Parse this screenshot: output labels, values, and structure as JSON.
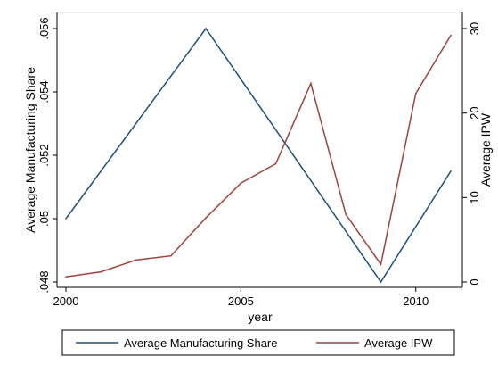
{
  "chart_data": {
    "type": "line",
    "title": "",
    "xlabel": "year",
    "ylabel_left": "Average Manufacturing Share",
    "ylabel_right": "Average IPW",
    "xlim": [
      2000,
      2011
    ],
    "ylim_left": [
      0.048,
      0.056
    ],
    "ylim_right": [
      0,
      30
    ],
    "x_ticks": [
      2000,
      2005,
      2010
    ],
    "x_tick_labels": [
      "2000",
      "2005",
      "2010"
    ],
    "y_left_ticks": [
      0.048,
      0.05,
      0.052,
      0.054,
      0.056
    ],
    "y_left_tick_labels": [
      ".048",
      ".05",
      ".052",
      ".054",
      ".056"
    ],
    "y_right_ticks": [
      0,
      10,
      20,
      30
    ],
    "y_right_tick_labels": [
      "0",
      "10",
      "20",
      "30"
    ],
    "grid": false,
    "legend_position": "bottom",
    "series": [
      {
        "name": "Average Manufacturing Share",
        "axis": "left",
        "color": "#1f4e79",
        "x": [
          2000,
          2004,
          2009,
          2011
        ],
        "values": [
          0.05,
          0.056,
          0.048,
          0.0515
        ]
      },
      {
        "name": "Average IPW",
        "axis": "right",
        "color": "#a0413b",
        "x": [
          2000,
          2001,
          2002,
          2003,
          2004,
          2005,
          2006,
          2007,
          2008,
          2009,
          2010,
          2011
        ],
        "values": [
          0.6,
          1.2,
          2.6,
          3.1,
          7.6,
          11.7,
          14,
          23.5,
          8,
          2.1,
          22.3,
          29.2
        ]
      }
    ]
  }
}
